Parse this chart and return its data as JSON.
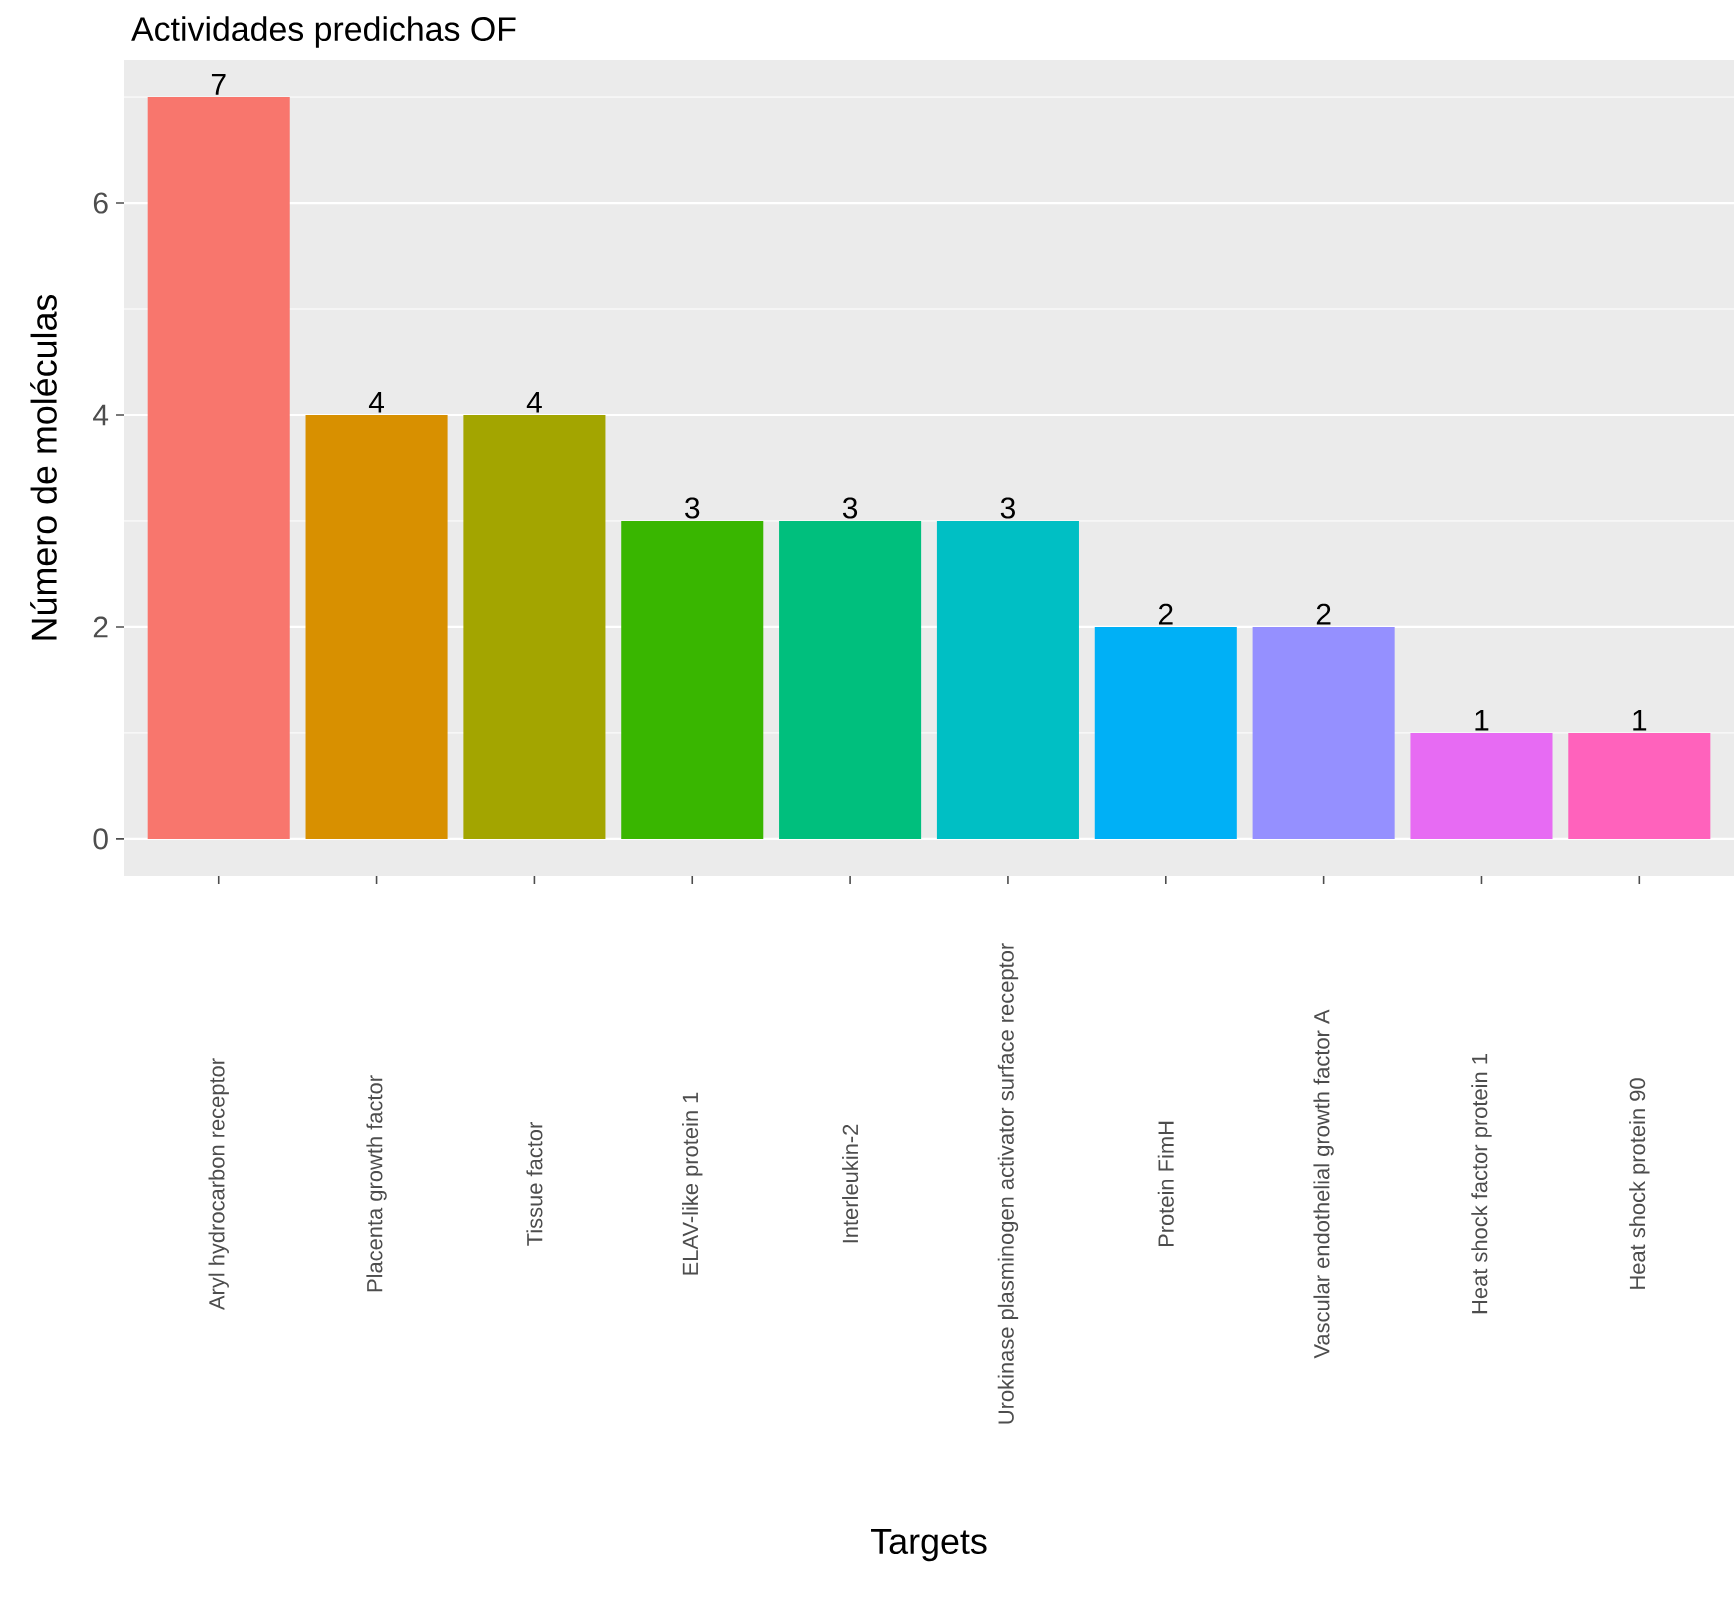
{
  "chart_data": {
    "type": "bar",
    "title": "Actividades predichas OF",
    "xlabel": "Targets",
    "ylabel": "Número de moléculas",
    "categories": [
      "Aryl hydrocarbon receptor",
      "Placenta growth factor",
      "Tissue factor",
      "ELAV-like protein 1",
      "Interleukin-2",
      "Urokinase plasminogen activator surface receptor",
      "Protein FimH",
      "Vascular endothelial growth factor A",
      "Heat shock factor protein 1",
      "Heat shock protein 90"
    ],
    "values": [
      7,
      4,
      4,
      3,
      3,
      3,
      2,
      2,
      1,
      1
    ],
    "colors": [
      "#F8766D",
      "#D89000",
      "#A3A500",
      "#39B600",
      "#00BF7D",
      "#00BFC4",
      "#00B0F6",
      "#9590FF",
      "#E76BF3",
      "#FF62BC"
    ],
    "ylim": [
      -0.35,
      7.35
    ],
    "yticks": [
      0,
      2,
      4,
      6
    ],
    "grid": true,
    "data_labels": true
  }
}
